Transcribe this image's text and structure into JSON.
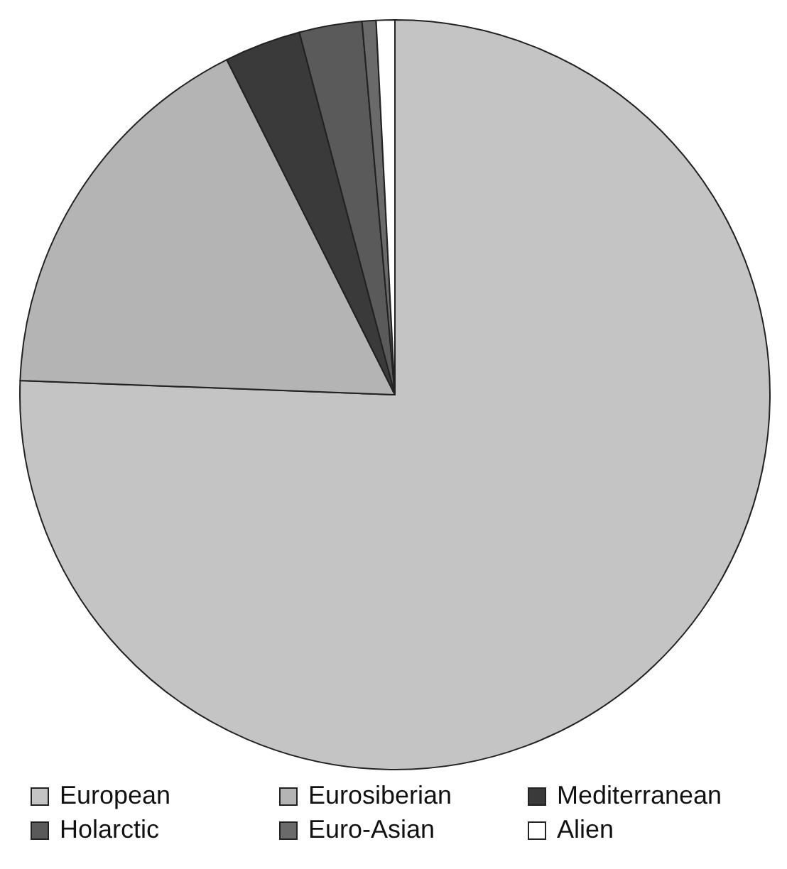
{
  "chart_data": {
    "type": "pie",
    "categories": [
      "European",
      "Eurosiberian",
      "Mediterranean",
      "Holarctic",
      "Euro-Asian",
      "Alien"
    ],
    "values": [
      75.6,
      17.0,
      3.3,
      2.7,
      0.6,
      0.8
    ],
    "colors": [
      "#c4c4c4",
      "#b4b4b4",
      "#3a3a3a",
      "#5a5a5a",
      "#6a6a6a",
      "#ffffff"
    ],
    "legend": "bottom"
  }
}
